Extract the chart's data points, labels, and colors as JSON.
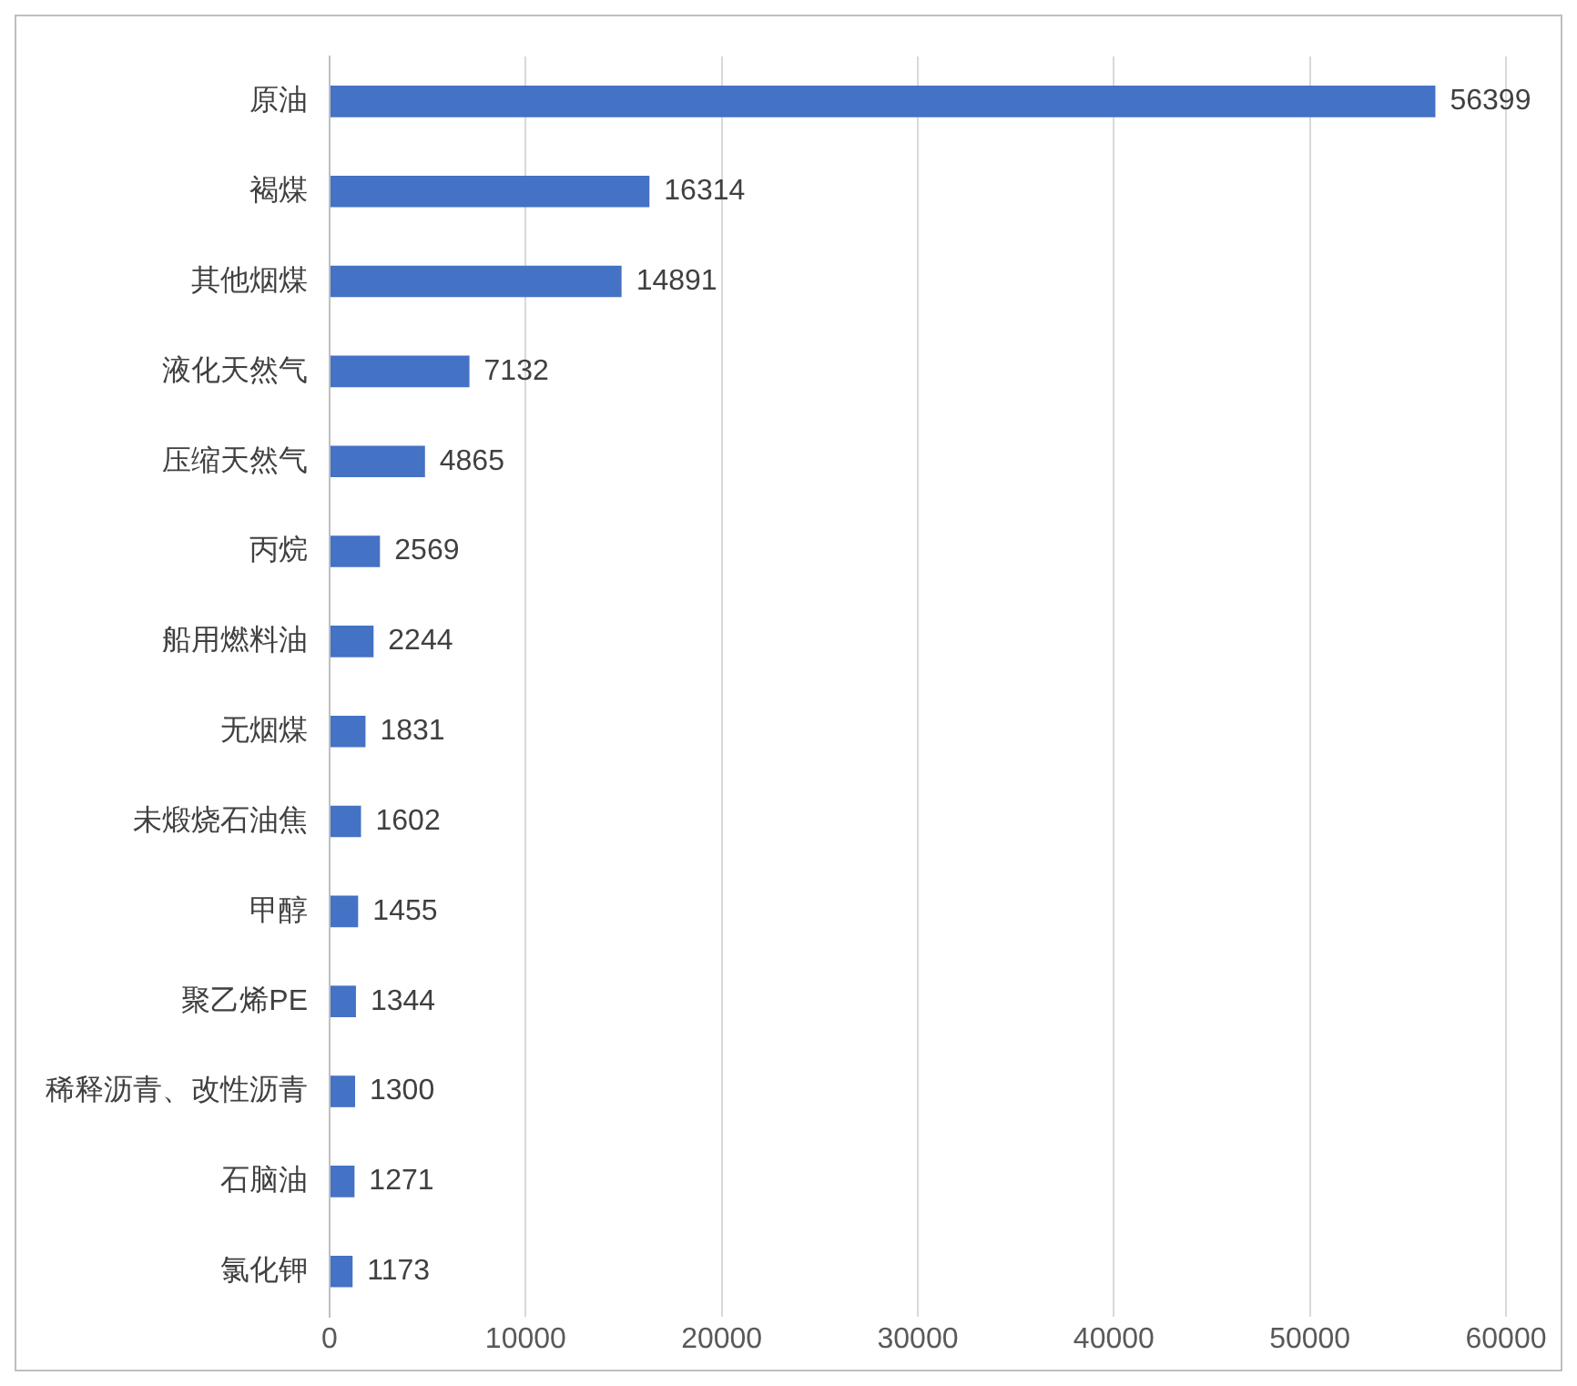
{
  "chart_data": {
    "type": "bar",
    "orientation": "horizontal",
    "categories": [
      "原油",
      "褐煤",
      "其他烟煤",
      "液化天然气",
      "压缩天然气",
      "丙烷",
      "船用燃料油",
      "无烟煤",
      "未煅烧石油焦",
      "甲醇",
      "聚乙烯PE",
      "稀释沥青、改性沥青",
      "石脑油",
      "氯化钾"
    ],
    "values": [
      56399,
      16314,
      14891,
      7132,
      4865,
      2569,
      2244,
      1831,
      1602,
      1455,
      1344,
      1300,
      1271,
      1173
    ],
    "color": "#4472c4",
    "xlim": [
      0,
      60000
    ],
    "xticks": [
      0,
      10000,
      20000,
      30000,
      40000,
      50000,
      60000
    ],
    "grid": "x",
    "data_labels": true,
    "legend": false
  }
}
